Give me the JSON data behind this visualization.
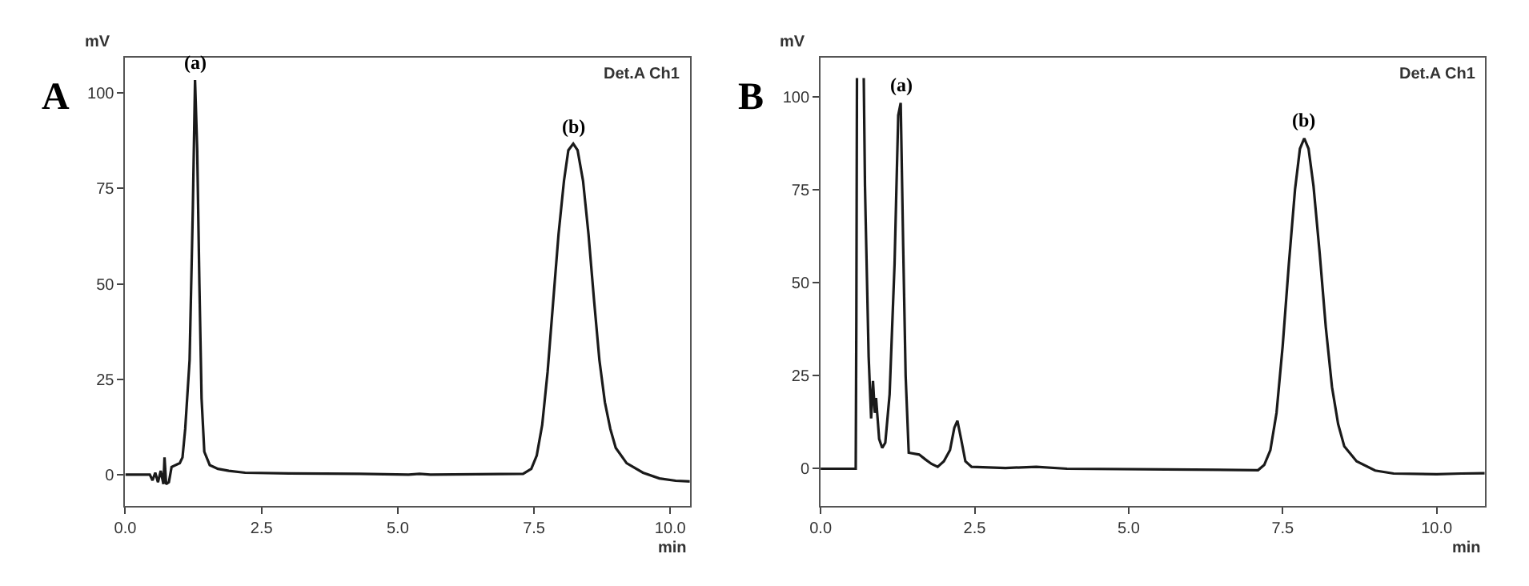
{
  "chart_data": [
    {
      "type": "line",
      "title": "A",
      "xlabel": "min",
      "ylabel": "mV",
      "xlim": [
        0,
        10.36
      ],
      "ylim": [
        -8.3,
        109.3
      ],
      "xticks": [
        {
          "value": 0,
          "label": "0.0"
        },
        {
          "value": 2.5,
          "label": "2.5"
        },
        {
          "value": 5,
          "label": "5.0"
        },
        {
          "value": 7.5,
          "label": "7.5"
        },
        {
          "value": 10,
          "label": "10.0"
        }
      ],
      "yticks": [
        0,
        25,
        50,
        75,
        100
      ],
      "marker": "none",
      "line_style": "solid",
      "annotations": [
        "Det.A Ch1",
        {
          "text": "(a)",
          "x": 1.28,
          "y": 103.4
        },
        {
          "text": "(b)",
          "x": 8.22,
          "y": 86.7
        }
      ],
      "series": [
        {
          "color": "#1a1a1a",
          "x": [
            0,
            0.45,
            0.5,
            0.55,
            0.6,
            0.65,
            0.7,
            0.72,
            0.75,
            0.8,
            0.85,
            1.0,
            1.05,
            1.1,
            1.18,
            1.24,
            1.28,
            1.32,
            1.36,
            1.4,
            1.45,
            1.55,
            1.7,
            1.9,
            2.2,
            3.0,
            4.3,
            5.2,
            5.4,
            5.6,
            7.3,
            7.45,
            7.55,
            7.65,
            7.75,
            7.85,
            7.95,
            8.05,
            8.13,
            8.22,
            8.3,
            8.4,
            8.5,
            8.6,
            8.7,
            8.8,
            8.9,
            9.0,
            9.2,
            9.5,
            9.8,
            10.1,
            10.36
          ],
          "values": [
            0,
            0,
            -1.5,
            0.5,
            -2,
            1,
            -2.5,
            4.5,
            -2.5,
            -2,
            2,
            3,
            4.5,
            12,
            30,
            70,
            103.4,
            85,
            50,
            20,
            6,
            2.5,
            1.5,
            1,
            0.5,
            0.3,
            0.2,
            0,
            0.2,
            0,
            0.2,
            1.5,
            5,
            13,
            27,
            45,
            63,
            77,
            85,
            86.7,
            85,
            77,
            63,
            46,
            30,
            19,
            12,
            7,
            3,
            0.5,
            -1,
            -1.6,
            -1.8
          ]
        }
      ]
    },
    {
      "type": "line",
      "title": "B",
      "xlabel": "min",
      "ylabel": "mV",
      "xlim": [
        0,
        10.78
      ],
      "ylim": [
        -10.1,
        110.5
      ],
      "xticks": [
        {
          "value": 0,
          "label": "0.0"
        },
        {
          "value": 2.5,
          "label": "2.5"
        },
        {
          "value": 5,
          "label": "5.0"
        },
        {
          "value": 7.5,
          "label": "7.5"
        },
        {
          "value": 10,
          "label": "10.0"
        }
      ],
      "yticks": [
        0,
        25,
        50,
        75,
        100
      ],
      "marker": "none",
      "line_style": "solid",
      "annotations": [
        "Det.A Ch1",
        {
          "text": "(a)",
          "x": 1.3,
          "y": 98.3
        },
        {
          "text": "(b)",
          "x": 7.85,
          "y": 88.8
        }
      ],
      "series": [
        {
          "color": "#1a1a1a",
          "x": [
            0,
            0.57,
            0.58,
            0.59,
            0.64,
            0.7,
            0.72,
            0.73,
            0.78,
            0.82,
            0.85,
            0.88,
            0.9,
            0.95,
            1.0,
            1.05,
            1.12,
            1.2,
            1.26,
            1.3,
            1.34,
            1.38,
            1.43,
            1.6,
            1.7,
            1.8,
            1.9,
            2.0,
            2.1,
            2.17,
            2.22,
            2.28,
            2.35,
            2.45,
            3.0,
            3.5,
            4.0,
            5.6,
            7.1,
            7.2,
            7.3,
            7.4,
            7.5,
            7.6,
            7.7,
            7.78,
            7.85,
            7.92,
            8.0,
            8.1,
            8.2,
            8.3,
            8.4,
            8.5,
            8.7,
            9.0,
            9.3,
            10.0,
            10.4,
            10.78
          ],
          "values": [
            0,
            0,
            40,
            105,
            null,
            105,
            76,
            68,
            30,
            13.5,
            23.6,
            15,
            19,
            8,
            5.6,
            7,
            20,
            55,
            95,
            98.3,
            60,
            25,
            4.3,
            3.8,
            2.5,
            1.3,
            0.5,
            2,
            5,
            11,
            12.9,
            8,
            2,
            0.5,
            0.2,
            0.5,
            0,
            -0.2,
            -0.4,
            1,
            5,
            15,
            33,
            55,
            75,
            86,
            88.8,
            86,
            76,
            58,
            38,
            22,
            12,
            6,
            2,
            -0.5,
            -1.3,
            -1.5,
            -1.3,
            -1.2
          ]
        }
      ]
    }
  ]
}
